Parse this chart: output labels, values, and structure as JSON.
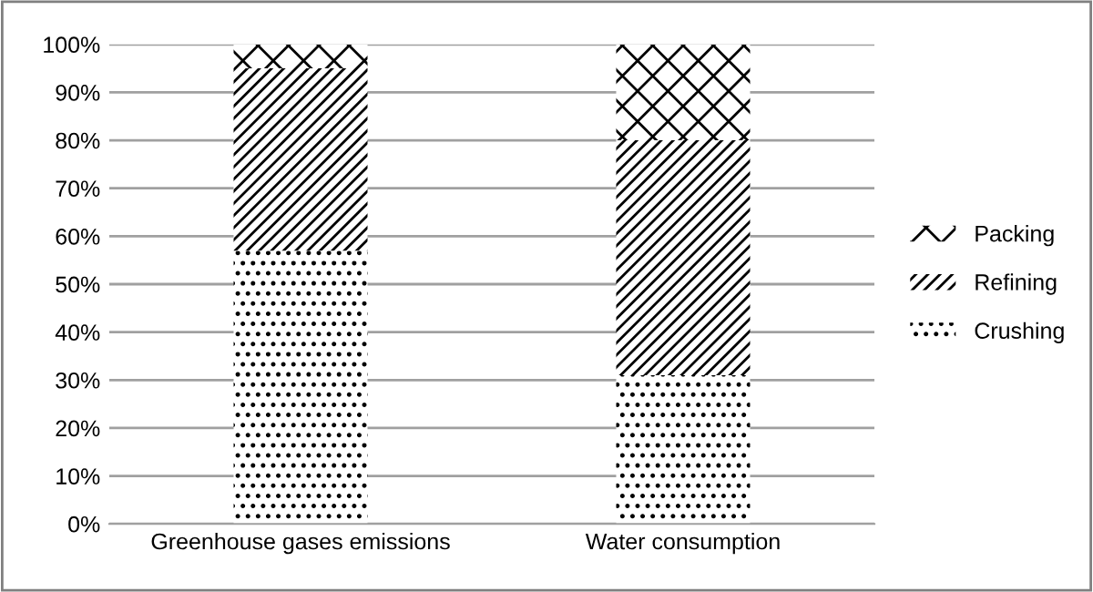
{
  "chart_data": {
    "type": "bar",
    "stacked": true,
    "categories": [
      "Greenhouse gases emissions",
      "Water consumption"
    ],
    "series": [
      {
        "name": "Crushing",
        "color": "#000000",
        "values": [
          57,
          31
        ]
      },
      {
        "name": "Refining",
        "color": "#000000",
        "values": [
          38,
          49
        ]
      },
      {
        "name": "Packing",
        "color": "#000000",
        "values": [
          5,
          20
        ]
      }
    ],
    "ylim": [
      0,
      100
    ],
    "yticks": [
      {
        "value": 0,
        "label": "0%"
      },
      {
        "value": 10,
        "label": "10%"
      },
      {
        "value": 20,
        "label": "20%"
      },
      {
        "value": 30,
        "label": "30%"
      },
      {
        "value": 40,
        "label": "40%"
      },
      {
        "value": 50,
        "label": "50%"
      },
      {
        "value": 60,
        "label": "60%"
      },
      {
        "value": 70,
        "label": "70%"
      },
      {
        "value": 80,
        "label": "80%"
      },
      {
        "value": 90,
        "label": "90%"
      },
      {
        "value": 100,
        "label": "100%"
      }
    ],
    "grid": "y",
    "legend": "right"
  }
}
